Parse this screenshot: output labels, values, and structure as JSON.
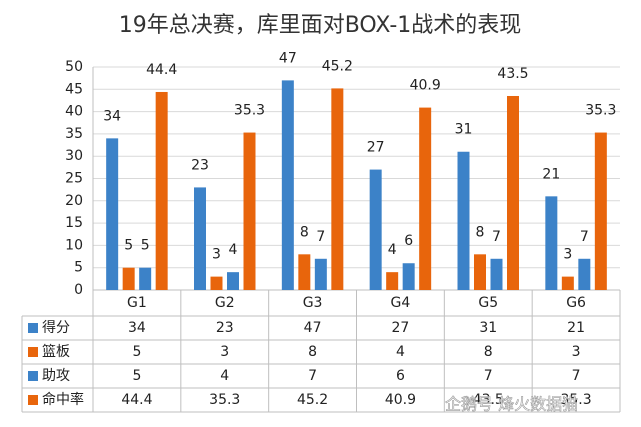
{
  "chart_data": {
    "type": "bar",
    "title": "19年总决赛，库里面对BOX-1战术的表现",
    "categories": [
      "G1",
      "G2",
      "G3",
      "G4",
      "G5",
      "G6"
    ],
    "series": [
      {
        "name": "得分",
        "color": "#3c82c8",
        "values": [
          34,
          23,
          47,
          27,
          31,
          21
        ]
      },
      {
        "name": "篮板",
        "color": "#e8650c",
        "values": [
          5,
          3,
          8,
          4,
          8,
          3
        ]
      },
      {
        "name": "助攻",
        "color": "#3c82c8",
        "values": [
          5,
          4,
          7,
          6,
          7,
          7
        ]
      },
      {
        "name": "命中率",
        "color": "#e8650c",
        "values": [
          44.4,
          35.3,
          45.2,
          40.9,
          43.5,
          35.3
        ]
      }
    ],
    "ylim": [
      0,
      50
    ],
    "yticks": [
      0,
      5,
      10,
      15,
      20,
      25,
      30,
      35,
      40,
      45,
      50
    ],
    "grid": true,
    "watermark": "企鹅号 烽火数据猫"
  }
}
